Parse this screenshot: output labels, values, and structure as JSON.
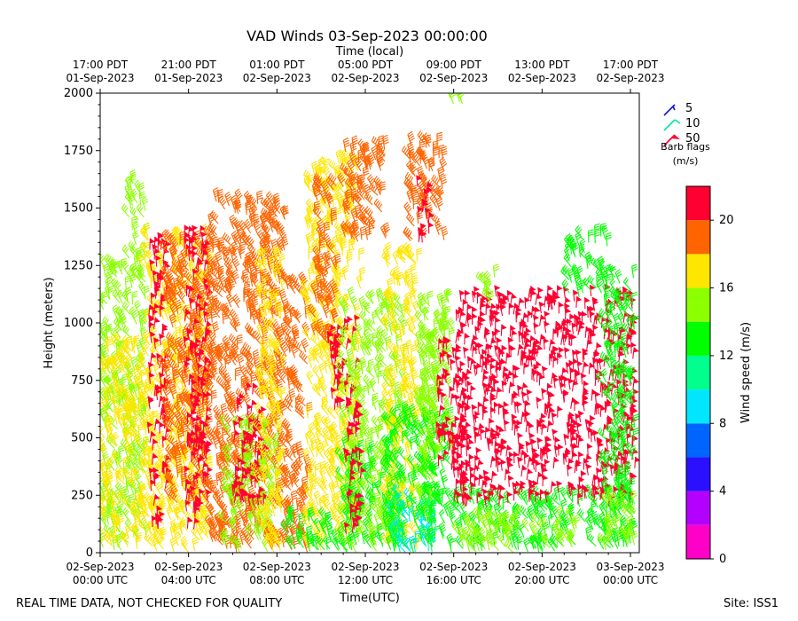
{
  "chart_data": {
    "type": "wind-barb-time-height",
    "title": "VAD Winds 03-Sep-2023 00:00:00",
    "top_axis_label": "Time (local)",
    "xlabel": "Time(UTC)",
    "ylabel": "Height (meters)",
    "x_range_hours": [
      0,
      24.4
    ],
    "ylim": [
      0,
      2000
    ],
    "y_ticks": [
      0,
      250,
      500,
      750,
      1000,
      1250,
      1500,
      1750,
      2000
    ],
    "x_ticks_utc": [
      {
        "h": 0,
        "line1": "02-Sep-2023",
        "line2": "00:00 UTC"
      },
      {
        "h": 4,
        "line1": "02-Sep-2023",
        "line2": "04:00 UTC"
      },
      {
        "h": 8,
        "line1": "02-Sep-2023",
        "line2": "08:00 UTC"
      },
      {
        "h": 12,
        "line1": "02-Sep-2023",
        "line2": "12:00 UTC"
      },
      {
        "h": 16,
        "line1": "02-Sep-2023",
        "line2": "16:00 UTC"
      },
      {
        "h": 20,
        "line1": "02-Sep-2023",
        "line2": "20:00 UTC"
      },
      {
        "h": 24,
        "line1": "03-Sep-2023",
        "line2": "00:00 UTC"
      }
    ],
    "x_ticks_local": [
      {
        "h": 0,
        "line1": "17:00 PDT",
        "line2": "01-Sep-2023"
      },
      {
        "h": 4,
        "line1": "21:00 PDT",
        "line2": "01-Sep-2023"
      },
      {
        "h": 8,
        "line1": "01:00 PDT",
        "line2": "02-Sep-2023"
      },
      {
        "h": 12,
        "line1": "05:00 PDT",
        "line2": "02-Sep-2023"
      },
      {
        "h": 16,
        "line1": "09:00 PDT",
        "line2": "02-Sep-2023"
      },
      {
        "h": 20,
        "line1": "13:00 PDT",
        "line2": "02-Sep-2023"
      },
      {
        "h": 24,
        "line1": "17:00 PDT",
        "line2": "02-Sep-2023"
      }
    ],
    "barb_legend": {
      "title_line1": "Barb flags",
      "title_line2": "(m/s)",
      "entries": [
        {
          "value": "5",
          "color": "#1010e0"
        },
        {
          "value": "10",
          "color": "#00e8a0"
        },
        {
          "value": "50",
          "color": "#ff0030"
        }
      ]
    },
    "colorbar": {
      "label": "Wind speed (m/s)",
      "min": 0,
      "max": 22,
      "ticks": [
        0,
        4,
        8,
        12,
        16,
        20
      ],
      "bins": [
        {
          "from": 0,
          "to": 2,
          "color": "#ff00c8"
        },
        {
          "from": 2,
          "to": 4,
          "color": "#b400ff"
        },
        {
          "from": 4,
          "to": 6,
          "color": "#2a10ff"
        },
        {
          "from": 6,
          "to": 8,
          "color": "#0064ff"
        },
        {
          "from": 8,
          "to": 10,
          "color": "#00e6ff"
        },
        {
          "from": 10,
          "to": 12,
          "color": "#00ff8c"
        },
        {
          "from": 12,
          "to": 14,
          "color": "#00ff00"
        },
        {
          "from": 14,
          "to": 16,
          "color": "#8cff00"
        },
        {
          "from": 16,
          "to": 18,
          "color": "#ffe600"
        },
        {
          "from": 18,
          "to": 20,
          "color": "#ff6400"
        },
        {
          "from": 20,
          "to": 22,
          "color": "#ff0030"
        }
      ]
    },
    "regions": [
      {
        "t0": 0.0,
        "t1": 1.3,
        "h0": 0,
        "h1": 1250,
        "speed": 14.8
      },
      {
        "t0": 1.3,
        "t1": 2.1,
        "h0": 0,
        "h1": 1650,
        "speed": 14.8
      },
      {
        "t0": 0.0,
        "t1": 2.0,
        "h0": 0,
        "h1": 900,
        "speed": 16.8
      },
      {
        "t0": 2.0,
        "t1": 5.0,
        "h0": 0,
        "h1": 1380,
        "speed": 16.8
      },
      {
        "t0": 2.2,
        "t1": 3.0,
        "h0": 100,
        "h1": 1380,
        "speed": 20.8
      },
      {
        "t0": 3.0,
        "t1": 5.0,
        "h0": 200,
        "h1": 1350,
        "speed": 18.8
      },
      {
        "t0": 3.8,
        "t1": 4.9,
        "h0": 100,
        "h1": 1380,
        "speed": 20.8
      },
      {
        "t0": 5.0,
        "t1": 8.4,
        "h0": 0,
        "h1": 1530,
        "speed": 18.8
      },
      {
        "t0": 5.6,
        "t1": 8.0,
        "h0": 0,
        "h1": 550,
        "speed": 14.8
      },
      {
        "t0": 6.0,
        "t1": 7.4,
        "h0": 200,
        "h1": 700,
        "speed": 20.8
      },
      {
        "t0": 7.2,
        "t1": 8.3,
        "h0": 0,
        "h1": 1280,
        "speed": 16.8
      },
      {
        "t0": 8.4,
        "t1": 9.4,
        "h0": 0,
        "h1": 1180,
        "speed": 18.8
      },
      {
        "t0": 8.4,
        "t1": 9.4,
        "h0": 0,
        "h1": 150,
        "speed": 12.8
      },
      {
        "t0": 9.4,
        "t1": 11.8,
        "h0": 0,
        "h1": 1700,
        "speed": 16.8
      },
      {
        "t0": 9.4,
        "t1": 11.8,
        "h0": 0,
        "h1": 150,
        "speed": 12.8
      },
      {
        "t0": 9.7,
        "t1": 10.7,
        "h0": 900,
        "h1": 1600,
        "speed": 18.8
      },
      {
        "t0": 10.3,
        "t1": 11.6,
        "h0": 600,
        "h1": 1000,
        "speed": 20.8
      },
      {
        "t0": 11.0,
        "t1": 13.0,
        "h0": 1350,
        "h1": 1760,
        "speed": 18.8
      },
      {
        "t0": 11.0,
        "t1": 13.8,
        "h0": 0,
        "h1": 1100,
        "speed": 14.8
      },
      {
        "t0": 11.0,
        "t1": 12.4,
        "h0": 0,
        "h1": 450,
        "speed": 12.8
      },
      {
        "t0": 11.1,
        "t1": 11.8,
        "h0": 60,
        "h1": 640,
        "speed": 20.8
      },
      {
        "t0": 12.4,
        "t1": 13.8,
        "h0": 0,
        "h1": 300,
        "speed": 12.8
      },
      {
        "t0": 13.0,
        "t1": 14.4,
        "h0": 0,
        "h1": 1300,
        "speed": 16.8
      },
      {
        "t0": 13.0,
        "t1": 15.2,
        "h0": 0,
        "h1": 600,
        "speed": 12.8
      },
      {
        "t0": 13.2,
        "t1": 15.2,
        "h0": 0,
        "h1": 250,
        "speed": 9.8
      },
      {
        "t0": 14.0,
        "t1": 15.6,
        "h0": 1350,
        "h1": 1780,
        "speed": 18.8
      },
      {
        "t0": 14.3,
        "t1": 14.9,
        "h0": 1340,
        "h1": 1600,
        "speed": 20.8
      },
      {
        "t0": 14.4,
        "t1": 15.3,
        "h0": 100,
        "h1": 950,
        "speed": 14.8
      },
      {
        "t0": 15.5,
        "t1": 16.4,
        "h0": 1950,
        "h1": 2000,
        "speed": 14.8
      },
      {
        "t0": 14.6,
        "t1": 16.0,
        "h0": 0,
        "h1": 600,
        "speed": 12.8
      },
      {
        "t0": 14.5,
        "t1": 16.1,
        "h0": 400,
        "h1": 1100,
        "speed": 14.8
      },
      {
        "t0": 15.2,
        "t1": 16.0,
        "h0": 350,
        "h1": 900,
        "speed": 20.8
      },
      {
        "t0": 16.0,
        "t1": 24.2,
        "h0": 0,
        "h1": 250,
        "speed": 12.8
      },
      {
        "t0": 16.0,
        "t1": 24.2,
        "h0": 200,
        "h1": 1120,
        "speed": 20.8
      },
      {
        "t0": 16.0,
        "t1": 16.6,
        "h0": 200,
        "h1": 700,
        "speed": 20.8
      },
      {
        "t0": 17.4,
        "t1": 17.9,
        "h0": 1080,
        "h1": 1300,
        "speed": 14.8
      },
      {
        "t0": 21.2,
        "t1": 23.0,
        "h0": 1100,
        "h1": 1380,
        "speed": 12.8
      },
      {
        "t0": 22.8,
        "t1": 24.2,
        "h0": 0,
        "h1": 1200,
        "speed": 12.8
      },
      {
        "t0": 22.8,
        "t1": 24.2,
        "h0": 0,
        "h1": 250,
        "speed": 14.8
      },
      {
        "t0": 16.2,
        "t1": 21.6,
        "h0": 0,
        "h1": 150,
        "speed": 14.8
      }
    ]
  },
  "footer": {
    "disclaimer": "REAL TIME DATA, NOT CHECKED FOR QUALITY",
    "site": "Site: ISS1"
  }
}
